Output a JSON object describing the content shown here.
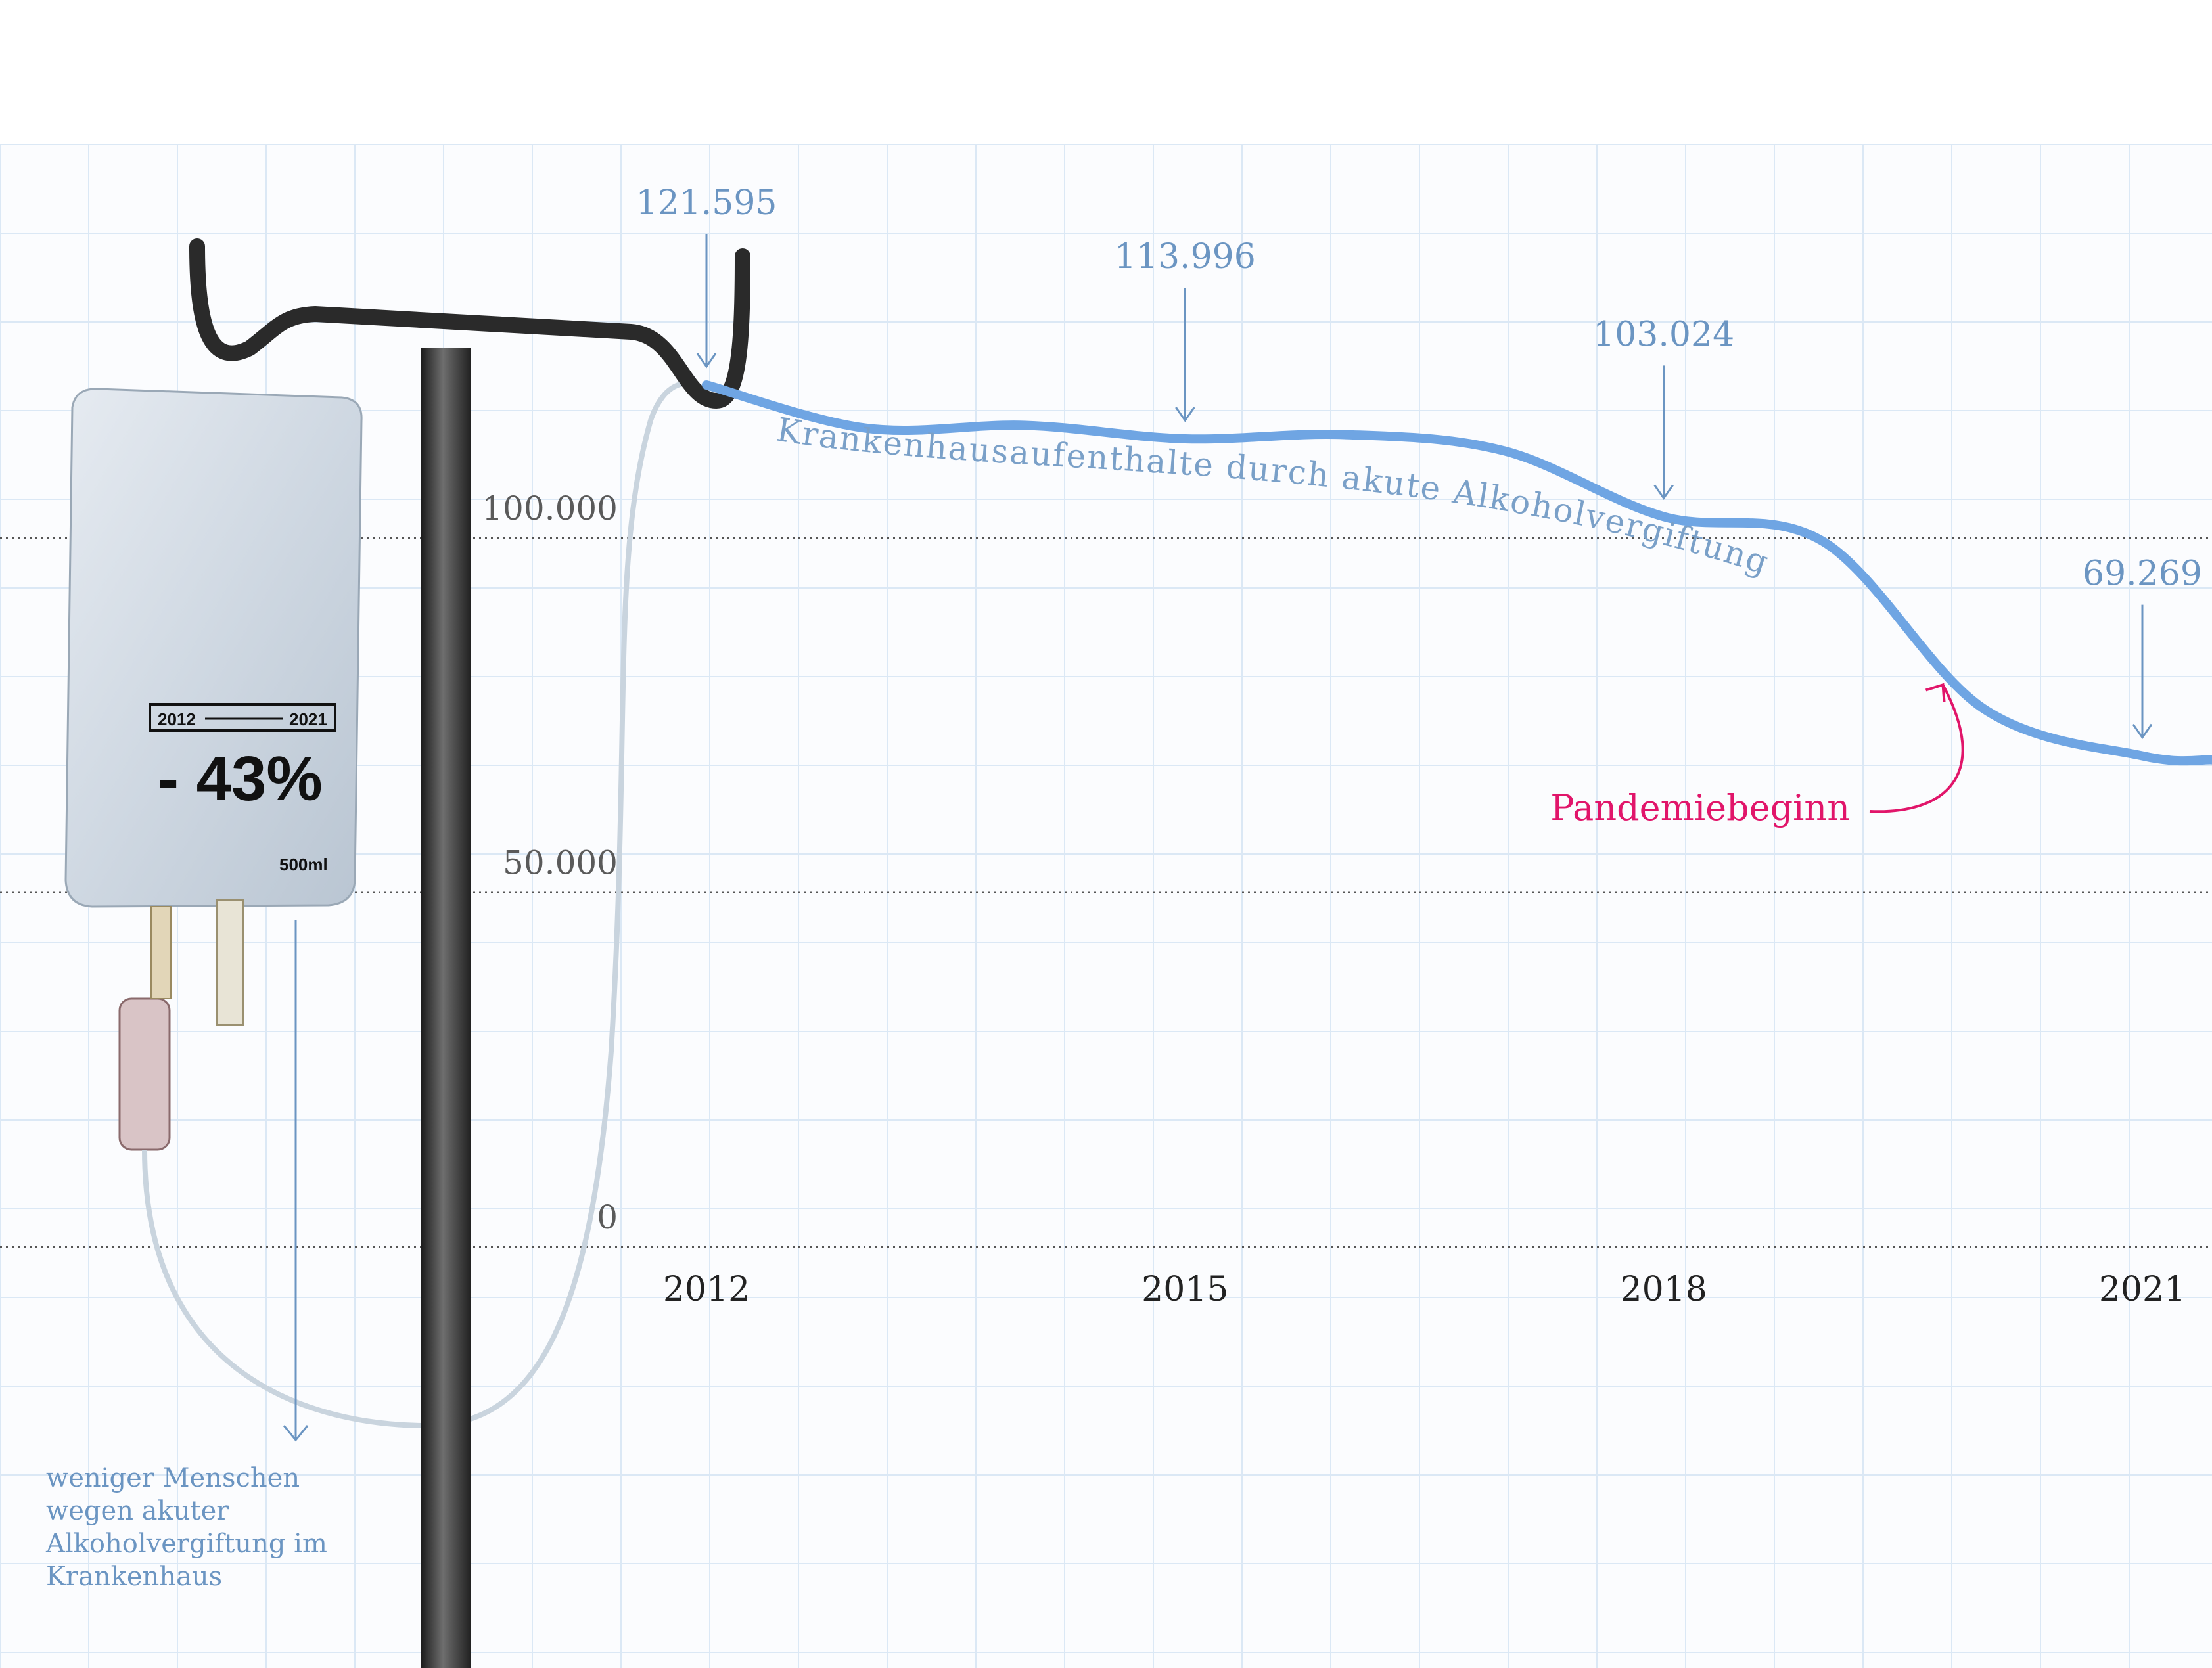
{
  "chart_data": {
    "type": "line",
    "title": "",
    "xlabel": "",
    "ylabel": "",
    "x_ticks": [
      "2012",
      "2015",
      "2018",
      "2021"
    ],
    "y_ticks": [
      "0",
      "50.000",
      "100.000"
    ],
    "ylim": [
      0,
      175000
    ],
    "xlim": [
      2011.2,
      2021.2
    ],
    "series": [
      {
        "name": "Krankenhausaufenthalte durch akute Alkoholvergiftung",
        "x": [
          2012,
          2013,
          2014,
          2015,
          2016,
          2017,
          2018,
          2019,
          2020,
          2021
        ],
        "y": [
          121595,
          115500,
          115900,
          113996,
          114600,
          112300,
          103024,
          99500,
          76000,
          69269
        ]
      }
    ],
    "annotations": [
      {
        "x": 2012,
        "text": "121.595"
      },
      {
        "x": 2015,
        "text": "113.996"
      },
      {
        "x": 2018,
        "text": "103.024"
      },
      {
        "x": 2021,
        "text": "69.269"
      }
    ],
    "event": {
      "x": 2019.75,
      "text": "Pandemiebeginn"
    },
    "grid": true,
    "legend": "none"
  },
  "bag": {
    "range_start": "2012",
    "range_end": "2021",
    "change": "- 43%",
    "volume": "500ml"
  },
  "note_text": "weniger Menschen wegen akuter Alkoholvergiftung im Krankenhaus",
  "colors": {
    "line": "#6fa5e3",
    "annotation": "#6b95c2",
    "event": "#e1156a",
    "grid": "#d6e6f6",
    "axis": "#555555"
  }
}
